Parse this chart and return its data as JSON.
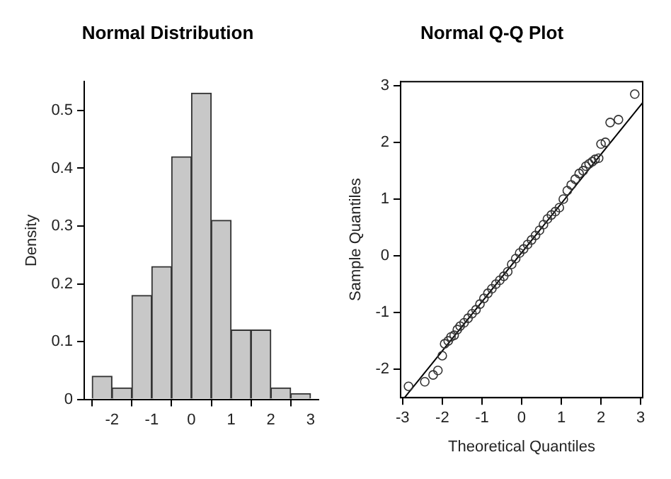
{
  "chart_data": [
    {
      "type": "histogram",
      "title": "Normal Distribution",
      "ylabel": "Density",
      "bins": [
        -2.5,
        -2,
        -1.5,
        -1,
        -0.5,
        0,
        0.5,
        1,
        1.5,
        2,
        2.5,
        3
      ],
      "values": [
        0.04,
        0.02,
        0.18,
        0.23,
        0.42,
        0.53,
        0.31,
        0.12,
        0.12,
        0.02,
        0.01
      ],
      "color": "#c8c8c8",
      "xlim": [
        -2.7,
        3.2
      ],
      "xticks": [
        -2,
        -1,
        0,
        1,
        2,
        3
      ],
      "ylim": [
        0,
        0.55
      ],
      "yticks": [
        0,
        0.1,
        0.2,
        0.3,
        0.4,
        0.5
      ],
      "grid": false
    },
    {
      "type": "scatter",
      "title": "Normal Q-Q Plot",
      "xlabel": "Theoretical Quantiles",
      "ylabel": "Sample Quantiles",
      "xlim": [
        -3.05,
        3.05
      ],
      "xticks": [
        -3,
        -2,
        -1,
        0,
        1,
        2,
        3
      ],
      "ylim": [
        -2.5,
        3.07
      ],
      "yticks": [
        -2,
        -1,
        0,
        1,
        2,
        3
      ],
      "grid": false,
      "series": [
        {
          "type": "scatter",
          "marker": "circle",
          "color": "#333333",
          "x": [
            -2.85,
            -2.44,
            -2.23,
            -2.11,
            -2.0,
            -1.94,
            -1.85,
            -1.78,
            -1.7,
            -1.62,
            -1.55,
            -1.45,
            -1.35,
            -1.25,
            -1.15,
            -1.05,
            -0.95,
            -0.85,
            -0.75,
            -0.65,
            -0.55,
            -0.45,
            -0.35,
            -0.25,
            -0.15,
            -0.05,
            0.05,
            0.15,
            0.25,
            0.35,
            0.45,
            0.55,
            0.65,
            0.75,
            0.85,
            0.95,
            1.05,
            1.15,
            1.25,
            1.35,
            1.45,
            1.55,
            1.62,
            1.7,
            1.78,
            1.85,
            1.94,
            2.0,
            2.11,
            2.23,
            2.44,
            2.85
          ],
          "values": [
            -2.3,
            -2.22,
            -2.1,
            -2.02,
            -1.76,
            -1.55,
            -1.5,
            -1.43,
            -1.4,
            -1.3,
            -1.24,
            -1.18,
            -1.1,
            -1.02,
            -0.95,
            -0.85,
            -0.75,
            -0.66,
            -0.58,
            -0.5,
            -0.43,
            -0.36,
            -0.28,
            -0.15,
            -0.05,
            0.05,
            0.12,
            0.2,
            0.28,
            0.36,
            0.45,
            0.55,
            0.65,
            0.72,
            0.78,
            0.85,
            1.0,
            1.15,
            1.25,
            1.35,
            1.45,
            1.5,
            1.58,
            1.62,
            1.66,
            1.7,
            1.72,
            1.97,
            2.0,
            2.35,
            2.4,
            2.85
          ]
        },
        {
          "type": "line",
          "marker": "none",
          "color": "#000000",
          "x": [
            -2.95,
            3.05
          ],
          "values": [
            -2.5,
            2.7
          ]
        }
      ]
    }
  ]
}
